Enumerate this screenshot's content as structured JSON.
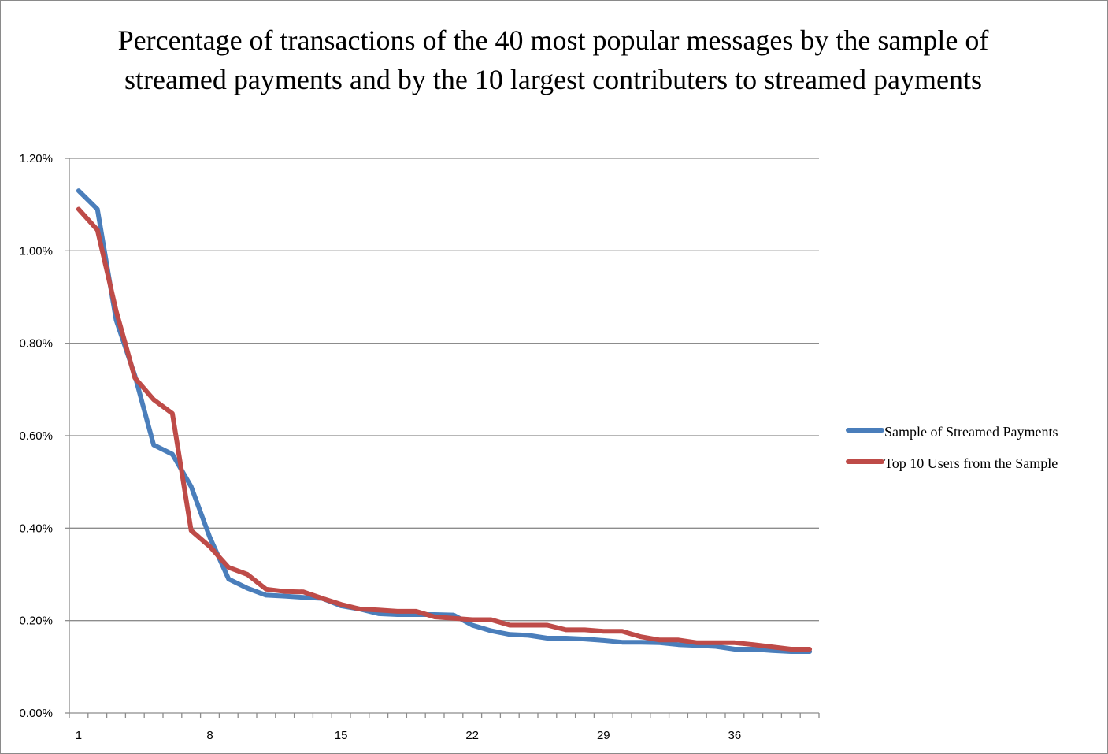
{
  "chart_data": {
    "type": "line",
    "title": "Percentage of transactions of the 40 most popular messages by the sample of streamed payments and by the 10 largest contributers to streamed payments",
    "xlabel": "",
    "ylabel": "",
    "x": [
      1,
      2,
      3,
      4,
      5,
      6,
      7,
      8,
      9,
      10,
      11,
      12,
      13,
      14,
      15,
      16,
      17,
      18,
      19,
      20,
      21,
      22,
      23,
      24,
      25,
      26,
      27,
      28,
      29,
      30,
      31,
      32,
      33,
      34,
      35,
      36,
      37,
      38,
      39,
      40
    ],
    "x_tick_labels": [
      "1",
      "8",
      "15",
      "22",
      "29",
      "36"
    ],
    "x_tick_values": [
      1,
      8,
      15,
      22,
      29,
      36
    ],
    "ylim": [
      0,
      1.2
    ],
    "y_tick_values": [
      0,
      0.2,
      0.4,
      0.6,
      0.8,
      1.0,
      1.2
    ],
    "y_tick_labels": [
      "0.00%",
      "0.20%",
      "0.40%",
      "0.60%",
      "0.80%",
      "1.00%",
      "1.20%"
    ],
    "grid": "horizontal",
    "legend_position": "right",
    "series": [
      {
        "name": "Sample of Streamed Payments",
        "color": "#4a7ebb",
        "values": [
          1.13,
          1.09,
          0.85,
          0.73,
          0.58,
          0.56,
          0.49,
          0.38,
          0.29,
          0.27,
          0.255,
          0.253,
          0.25,
          0.248,
          0.232,
          0.225,
          0.215,
          0.213,
          0.213,
          0.213,
          0.212,
          0.19,
          0.178,
          0.17,
          0.168,
          0.162,
          0.162,
          0.16,
          0.157,
          0.153,
          0.153,
          0.152,
          0.148,
          0.146,
          0.144,
          0.138,
          0.138,
          0.135,
          0.133,
          0.133
        ]
      },
      {
        "name": "Top 10 Users from the Sample",
        "color": "#be4b48",
        "values": [
          1.09,
          1.045,
          0.87,
          0.725,
          0.678,
          0.648,
          0.395,
          0.36,
          0.315,
          0.3,
          0.268,
          0.263,
          0.262,
          0.248,
          0.235,
          0.225,
          0.223,
          0.22,
          0.22,
          0.208,
          0.205,
          0.202,
          0.202,
          0.19,
          0.19,
          0.19,
          0.18,
          0.18,
          0.177,
          0.177,
          0.165,
          0.158,
          0.158,
          0.152,
          0.152,
          0.152,
          0.148,
          0.143,
          0.138,
          0.138
        ]
      }
    ]
  }
}
